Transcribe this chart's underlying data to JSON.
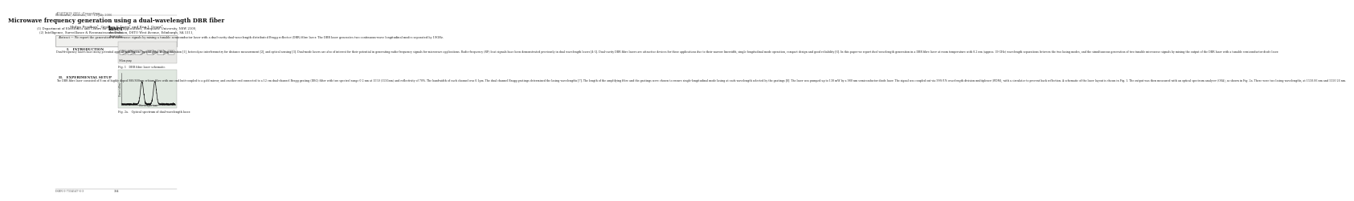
{
  "background_color": "#ffffff",
  "page_width": 2.11,
  "page_height": 3.0,
  "header_line1": "ACOFTAOS 2006 - Proceedings",
  "header_line2": "Melbourne, Australia, 10 - 13 July 2006",
  "title": "Microwave frequency generation using a dual-wavelength DBR fiber\nlaser",
  "authors": "Shilpa Pradhan¹, Graham E Town¹ and Ken J. Grant²",
  "affil1": "(1) Department of Electronics and Centre for Lasers & Applications, Macquarie University, NSW 2109,\nAustralia.",
  "affil2": "(2) Intelligence, Surveillance & Reconnaissance Division, DSTO West Avenue, Edinburgh, SA 5111,\nAustralia.",
  "abstract_label": "Abstract —",
  "abstract_text": "We report the generation of microwave signals by mixing a tunable semiconductor laser with a dual-cavity dual-wavelength distributed Bragg reflector (DBR) fibre laser. The DBR laser generates two continuous-wave longitudinal modes separated by 19GHz.",
  "section1_title": "I.   INTRODUCTION",
  "section1_text": "Dual-frequency lasers have many potential applications such as optical pulse train generation [1], heterodyne interferometry for distance measurement [2], and optical sensing [3]. Dual-mode lasers are also of interest for their potential in generating radio-frequency signals for microwave applications. Radio-frequency (RF) beat signals have been demonstrated previously in dual wavelength lasers [4-5]. Dual-cavity DBR fibre lasers are attractive devices for these applications due to their narrow linewidth, single-longitudinal mode operation, compact design and good reliability [6]. In this paper we report dual-wavelength generation in a DBR fibre laser at room temperature with 0.2 nm (approx. 19 GHz) wavelength separations between the two lasing modes, and the simultaneous generation of two tunable microwave signals by mixing the output of the DBR laser with a tunable semiconductor diode laser.",
  "section2_title": "II.   EXPERIMENTAL SETUP",
  "section2_text": "The DBR fibre laser consisted of 8 cm of highly doped 980/800nm erbium fibre with one end butt-coupled to a gold mirror, and another end connected to a 12 cm dual-channel Bragg grating (DBG) filter with two spectral range 0.2 nm at 1550 (1550nm) and reflectivity of 70%. The bandwidth of each channel was 0.1pm. The dual channel Bragg gratings determined the lasing wavelengths [7]. The length of the amplifying fibre and the gratings were chosen to ensure single-longitudinal mode lasing at each wavelength selected by the gratings [8]. The laser was pumped up to 130 mW by a 980 nm semiconductor diode laser. The signal was coupled out via 99%/1% wavelength division multiplexer (WDM), with a circulator to prevent back reflection. A schematic of the laser layout is shown in Fig. 1. The output was then measured with an optical spectrum analyser (OSA), as shown in Fig. 2a. There were two lasing wavelengths, at 1550.06 nm and 1550.26 nm.",
  "fig1_caption": "Fig. 1   DBR fibre laser schematic.",
  "fig2_caption": "Fig. 2a.   Optical spectrum of dual-wavelength laser.",
  "footer_isbn": "ISBN 0-7334547-6-3",
  "footer_page": "304",
  "text_color": "#222222",
  "title_color": "#111111",
  "header_color": "#555555"
}
